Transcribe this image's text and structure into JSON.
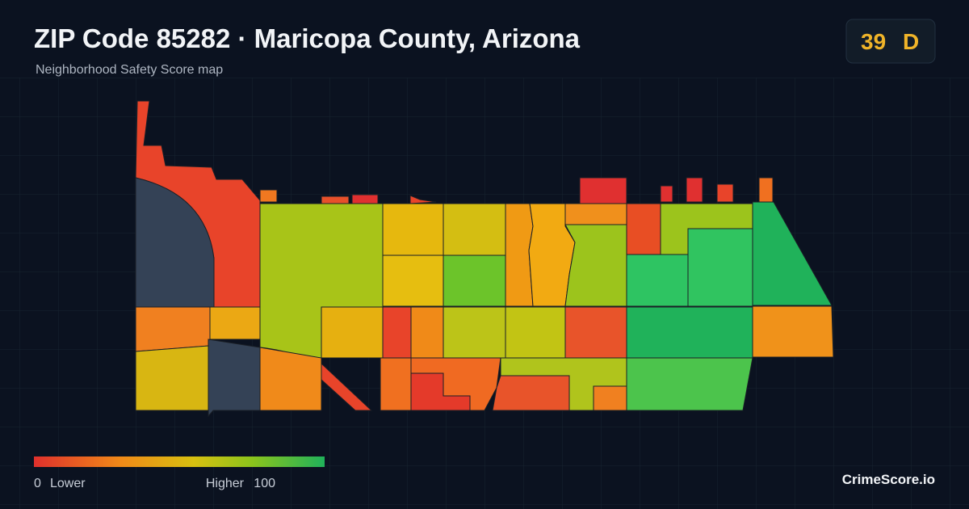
{
  "header": {
    "title": "ZIP Code 85282 · Maricopa County, Arizona",
    "subtitle": "Neighborhood Safety Score map"
  },
  "badge": {
    "score": "39",
    "grade": "D"
  },
  "legend": {
    "min": "0",
    "min_label": "Lower",
    "max_label": "Higher",
    "max": "100"
  },
  "footer": {
    "brand": "CrimeScore.io"
  }
}
